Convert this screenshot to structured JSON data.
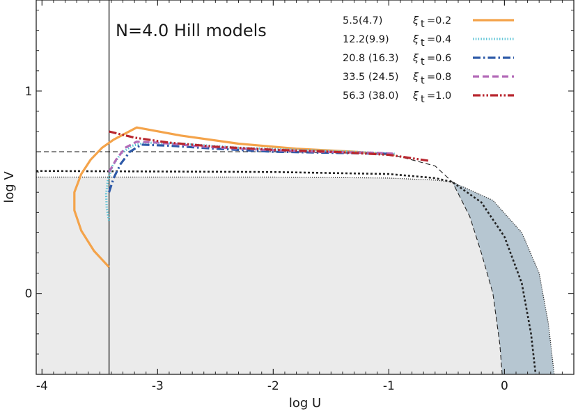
{
  "chart_data": {
    "type": "line",
    "title": "N=4.0 Hill models",
    "xlabel": "log U",
    "ylabel": "log V",
    "xlim": [
      -4.05,
      0.6
    ],
    "ylim": [
      -0.4,
      1.45
    ],
    "x_ticks": [
      -4,
      -3,
      -2,
      -1,
      0
    ],
    "x_tick_labels": [
      "-4",
      "-3",
      "-2",
      "-1",
      "0"
    ],
    "y_ticks": [
      0,
      1
    ],
    "y_tick_labels": [
      "0",
      "1"
    ],
    "legend_position": "top-right",
    "series": [
      {
        "name": "ξt=0.2",
        "legend_value": "5.5(4.7)",
        "legend_xi": "ξ",
        "legend_sub": "t",
        "legend_eq": "=0.2",
        "color": "#f4a34a",
        "style": "solid",
        "x": [
          -3.42,
          -3.55,
          -3.66,
          -3.72,
          -3.72,
          -3.66,
          -3.58,
          -3.48,
          -3.38,
          -3.18,
          -2.8,
          -2.3,
          -1.8,
          -1.3,
          -0.95
        ],
        "y": [
          0.13,
          0.21,
          0.31,
          0.41,
          0.5,
          0.59,
          0.66,
          0.72,
          0.76,
          0.82,
          0.78,
          0.74,
          0.715,
          0.7,
          0.685
        ]
      },
      {
        "name": "ξt=0.4",
        "legend_value": "12.2(9.9)",
        "legend_xi": "ξ",
        "legend_sub": "t",
        "legend_eq": "=0.4",
        "color": "#5ec4d6",
        "style": "dotted",
        "x": [
          -3.42,
          -3.44,
          -3.445,
          -3.43,
          -3.39,
          -3.32,
          -3.22,
          -3.1,
          -2.8,
          -2.3,
          -1.8,
          -1.3,
          -0.95
        ],
        "y": [
          0.36,
          0.42,
          0.49,
          0.56,
          0.63,
          0.69,
          0.73,
          0.745,
          0.74,
          0.72,
          0.71,
          0.7,
          0.69
        ]
      },
      {
        "name": "ξt=0.6",
        "legend_value": "20.8 (16.3)",
        "legend_xi": "ξ",
        "legend_sub": "t",
        "legend_eq": "=0.6",
        "color": "#2e5aa8",
        "style": "dashdot",
        "x": [
          -3.42,
          -3.38,
          -3.32,
          -3.24,
          -3.14,
          -2.9,
          -2.5,
          -2.0,
          -1.5,
          -1.0,
          -0.95
        ],
        "y": [
          0.5,
          0.57,
          0.64,
          0.7,
          0.735,
          0.73,
          0.715,
          0.7,
          0.695,
          0.69,
          0.685
        ]
      },
      {
        "name": "ξt=0.8",
        "legend_value": "33.5 (24.5)",
        "legend_xi": "ξ",
        "legend_sub": "t",
        "legend_eq": "=0.8",
        "color": "#b36bb8",
        "style": "dashed",
        "x": [
          -3.42,
          -3.36,
          -3.28,
          -3.18,
          -3.0,
          -2.6,
          -2.1,
          -1.6,
          -1.1,
          -0.95
        ],
        "y": [
          0.6,
          0.66,
          0.72,
          0.75,
          0.745,
          0.725,
          0.71,
          0.7,
          0.695,
          0.69
        ]
      },
      {
        "name": "ξt=1.0",
        "legend_value": "56.3 (38.0)",
        "legend_xi": "ξ",
        "legend_sub": "t",
        "legend_eq": "=1.0",
        "color": "#b8262e",
        "style": "dashdotdot",
        "x": [
          -3.42,
          -3.2,
          -2.9,
          -2.5,
          -2.0,
          -1.5,
          -1.0,
          -0.65
        ],
        "y": [
          0.8,
          0.77,
          0.745,
          0.725,
          0.71,
          0.7,
          0.685,
          0.655
        ]
      }
    ],
    "boundary_curves": [
      {
        "color": "#222222",
        "style": "thin-dashed",
        "x": [
          -4.05,
          -2.0,
          -1.0,
          -0.6,
          -0.45,
          -0.3,
          -0.2,
          -0.1,
          -0.04,
          -0.02
        ],
        "y": [
          0.7,
          0.7,
          0.69,
          0.63,
          0.55,
          0.38,
          0.2,
          0.0,
          -0.25,
          -0.4
        ]
      },
      {
        "color": "#222222",
        "style": "thick-dotted",
        "x": [
          -4.05,
          -2.0,
          -1.0,
          -0.6,
          -0.45,
          -0.2,
          0.0,
          0.15,
          0.23,
          0.27
        ],
        "y": [
          0.605,
          0.6,
          0.59,
          0.57,
          0.55,
          0.45,
          0.28,
          0.05,
          -0.2,
          -0.4
        ]
      },
      {
        "color": "#222222",
        "style": "fine-dotted",
        "x": [
          -4.05,
          -2.0,
          -1.0,
          -0.6,
          -0.45,
          -0.1,
          0.15,
          0.3,
          0.38,
          0.43
        ],
        "y": [
          0.575,
          0.575,
          0.57,
          0.56,
          0.55,
          0.46,
          0.3,
          0.1,
          -0.15,
          -0.4
        ]
      }
    ],
    "vertical_line_x": -3.42,
    "shaded_region_color": "#ebebeb",
    "blue_region_color": "#b6c6d1"
  }
}
